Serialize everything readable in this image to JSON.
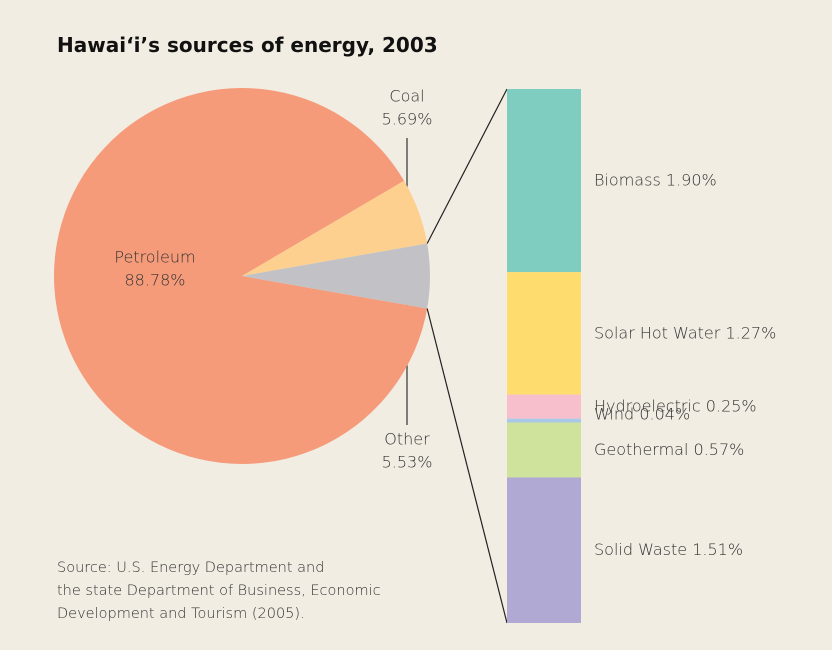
{
  "chart_data": {
    "type": "pie",
    "title": "Hawai‘i’s sources of energy, 2003",
    "categories": [
      "Petroleum",
      "Coal",
      "Other"
    ],
    "values": [
      88.78,
      5.69,
      5.53
    ],
    "value_labels": [
      "88.78%",
      "5.69%",
      "5.53%"
    ],
    "colors": [
      "#f59b7a",
      "#fdd08f",
      "#c2c2c6"
    ],
    "breakdown": {
      "categories": [
        "Biomass",
        "Solar Hot Water",
        "Hydroelectric",
        "Wind",
        "Geothermal",
        "Solid Waste"
      ],
      "values": [
        1.9,
        1.27,
        0.25,
        0.04,
        0.57,
        1.51
      ],
      "value_labels": [
        "1.90%",
        "1.27%",
        "0.25%",
        "0.04%",
        "0.57%",
        "1.51%"
      ],
      "colors": [
        "#7ecdc0",
        "#fedd6e",
        "#f7bfcc",
        "#a9c8e8",
        "#d0e39d",
        "#b0a9d4"
      ]
    },
    "source": [
      "Source: U.S. Energy Department and",
      "the state Department of Business, Economic",
      "Development and Tourism (2005)."
    ]
  }
}
